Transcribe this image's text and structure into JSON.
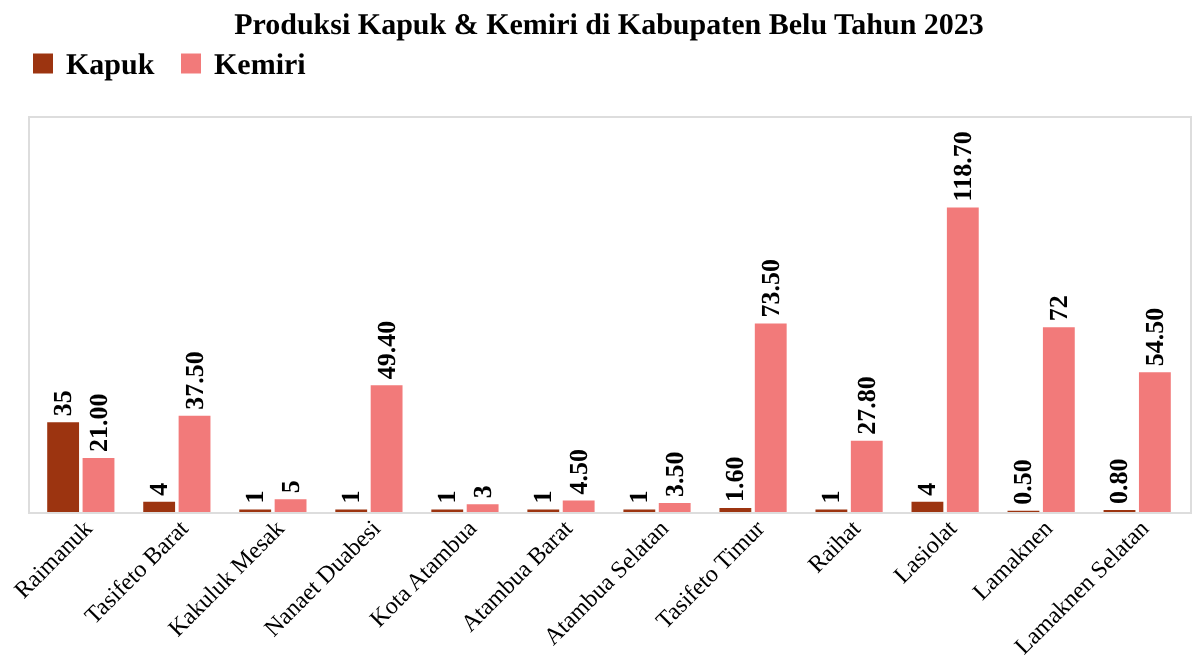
{
  "chart_data": {
    "type": "bar",
    "title": "Produksi Kapuk & Kemiri di Kabupaten Belu Tahun 2023",
    "categories": [
      "Raimanuk",
      "Tasifeto Barat",
      "Kakuluk Mesak",
      "Nanaet Duabesi",
      "Kota Atambua",
      "Atambua Barat",
      "Atambua Selatan",
      "Tasifeto Timur",
      "Raihat",
      "Lasiolat",
      "Lamaknen",
      "Lamaknen Selatan"
    ],
    "series": [
      {
        "name": "Kapuk",
        "color": "#9c3410",
        "values": [
          35,
          4,
          1,
          1,
          1,
          1,
          1,
          1.6,
          1,
          4,
          0.5,
          0.8
        ],
        "value_labels": [
          "35",
          "4",
          "1",
          "1",
          "1",
          "1",
          "1",
          "1.60",
          "1",
          "4",
          "0.50",
          "0.80"
        ]
      },
      {
        "name": "Kemiri",
        "color": "#f27a7a",
        "values": [
          21,
          37.5,
          5,
          49.4,
          3,
          4.5,
          3.5,
          73.5,
          27.8,
          118.7,
          72,
          54.5
        ],
        "value_labels": [
          "21.00",
          "37.50",
          "5",
          "49.40",
          "3",
          "4.50",
          "3.50",
          "73.50",
          "27.80",
          "118.70",
          "72",
          "54.50"
        ]
      }
    ],
    "legend": "top",
    "grid": false
  }
}
